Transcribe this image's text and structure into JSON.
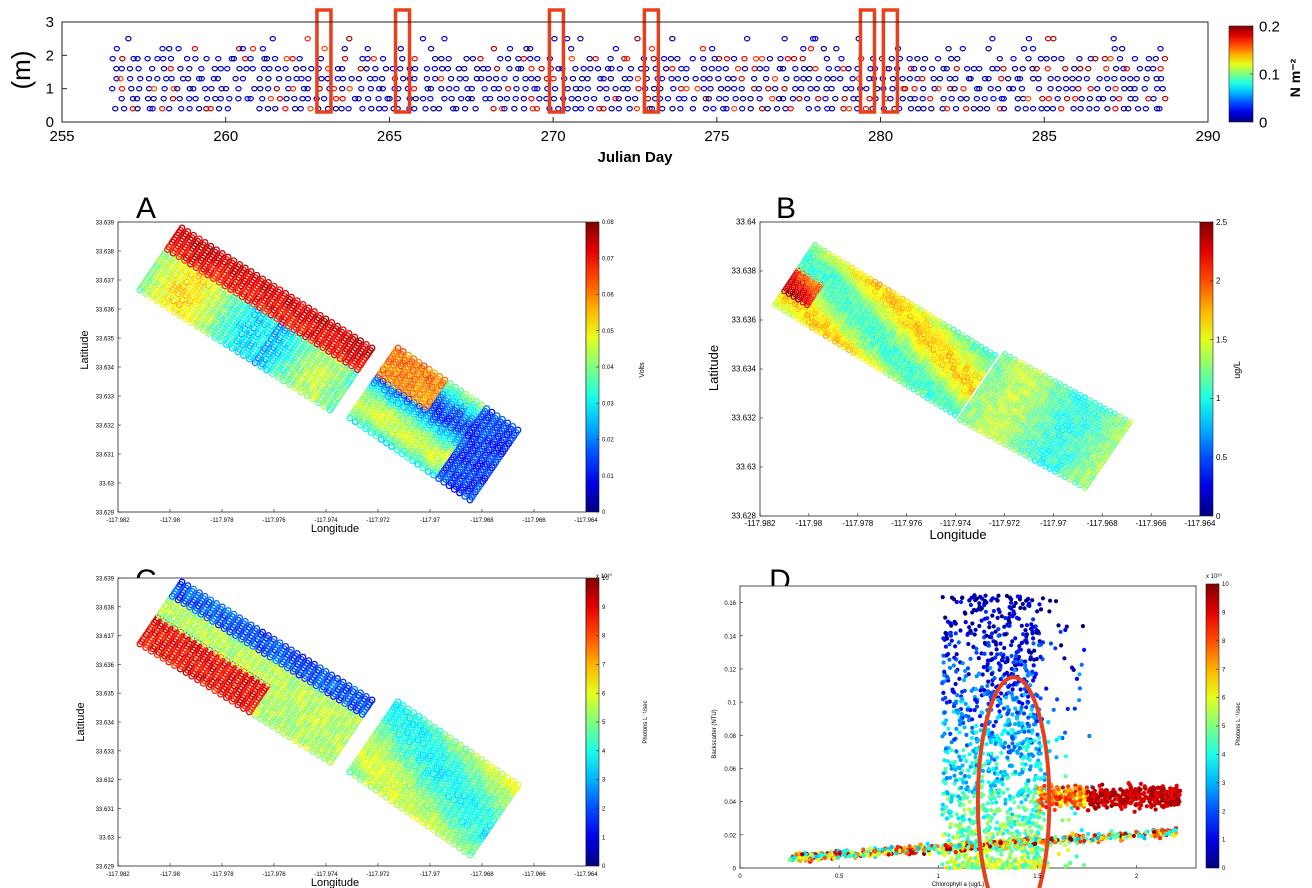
{
  "top_panel": {
    "ylabel": "(m)",
    "xlabel": "Julian Day",
    "xticks": [
      "255",
      "260",
      "265",
      "270",
      "275",
      "280",
      "285",
      "290"
    ],
    "yticks": [
      "0",
      "1",
      "2",
      "3"
    ],
    "colorbar": {
      "ticks": [
        "0",
        "0.1",
        "0.2"
      ],
      "label": "N m⁻²"
    },
    "highlight_days": [
      263,
      265.4,
      270.1,
      273,
      279.6,
      280.3
    ]
  },
  "panels": [
    {
      "letter": "A",
      "xlabel": "Longitude",
      "ylabel": "Latitude",
      "yticks": [
        "33.639",
        "33.638",
        "33.637",
        "33.636",
        "33.635",
        "33.634",
        "33.633",
        "33.632",
        "33.631",
        "33.63",
        "33.629"
      ],
      "xticks": [
        "-117.982",
        "-117.98",
        "-117.978",
        "-117.976",
        "-117.974",
        "-117.972",
        "-117.97",
        "-117.968",
        "-117.966",
        "-117.964"
      ],
      "colorbar": {
        "ticks": [
          "0",
          "0.01",
          "0.02",
          "0.03",
          "0.04",
          "0.05",
          "0.06",
          "0.07",
          "0.08"
        ],
        "label": "Volts"
      }
    },
    {
      "letter": "B",
      "xlabel": "Longitude",
      "ylabel": "Latitude",
      "yticks": [
        "33.64",
        "33.638",
        "33.636",
        "33.634",
        "33.632",
        "33.63",
        "33.628"
      ],
      "xticks": [
        "-117.982",
        "-117.98",
        "-117.978",
        "-117.976",
        "-117.974",
        "-117.972",
        "-117.97",
        "-117.968",
        "-117.966",
        "-117.964"
      ],
      "colorbar": {
        "ticks": [
          "0",
          "0.5",
          "1",
          "1.5",
          "2",
          "2.5"
        ],
        "label": "ug/L"
      }
    },
    {
      "letter": "C",
      "xlabel": "Longitude",
      "ylabel": "Latitude",
      "yticks": [
        "33.639",
        "33.638",
        "33.637",
        "33.636",
        "33.635",
        "33.634",
        "33.633",
        "33.632",
        "33.631",
        "33.63",
        "33.629"
      ],
      "xticks": [
        "-117.982",
        "-117.98",
        "-117.978",
        "-117.976",
        "-117.974",
        "-117.972",
        "-117.97",
        "-117.968",
        "-117.966",
        "-117.964"
      ],
      "colorbar": {
        "ticks": [
          "0",
          "1",
          "2",
          "3",
          "4",
          "5",
          "6",
          "7",
          "8",
          "9",
          "10"
        ],
        "label": "Photons L⁻¹/sec",
        "exponent": "x 10¹⁰"
      }
    },
    {
      "letter": "D",
      "xlabel": "Chlorophyll a (ug/L)",
      "ylabel": "Backscatter (NTU)",
      "yticks": [
        "0",
        "0.02",
        "0.04",
        "0.06",
        "0.08",
        "0.1",
        "0.12",
        "0.14",
        "0.16"
      ],
      "xticks": [
        "0",
        "0.5",
        "1",
        "1.5",
        "2"
      ],
      "colorbar": {
        "ticks": [
          "0",
          "1",
          "2",
          "3",
          "4",
          "5",
          "6",
          "7",
          "8",
          "9",
          "10"
        ],
        "label": "Photons L⁻¹/sec",
        "exponent": "x 10¹⁰"
      }
    }
  ],
  "chart_data": [
    {
      "type": "scatter",
      "xlabel": "Julian Day",
      "ylabel": "(m)",
      "xlim": [
        255,
        290
      ],
      "ylim": [
        0,
        3
      ],
      "depth_levels": [
        0.4,
        0.7,
        1.0,
        1.3,
        1.6,
        1.9,
        2.2,
        2.5
      ],
      "day_range": [
        256.5,
        288.5
      ],
      "colorbar_range": [
        0,
        0.2
      ],
      "colormap": "jet"
    },
    {
      "type": "scatter",
      "xlabel": "Longitude",
      "ylabel": "Latitude",
      "xlim": [
        -117.982,
        -117.964
      ],
      "ylim": [
        33.629,
        33.639
      ],
      "colorbar_range": [
        0,
        0.08
      ],
      "colormap": "jet"
    },
    {
      "type": "scatter",
      "xlabel": "Longitude",
      "ylabel": "Latitude",
      "xlim": [
        -117.982,
        -117.964
      ],
      "ylim": [
        33.628,
        33.64
      ],
      "colorbar_range": [
        0,
        2.5
      ],
      "colormap": "jet"
    },
    {
      "type": "scatter",
      "xlabel": "Longitude",
      "ylabel": "Latitude",
      "xlim": [
        -117.982,
        -117.964
      ],
      "ylim": [
        33.629,
        33.639
      ],
      "colorbar_range": [
        0,
        10
      ],
      "colormap": "jet"
    },
    {
      "type": "scatter",
      "xlabel": "Chlorophyll a (ug/L)",
      "ylabel": "Backscatter (NTU)",
      "xlim": [
        0,
        2.3
      ],
      "ylim": [
        0,
        0.17
      ],
      "colorbar_range": [
        0,
        10
      ],
      "colormap": "jet",
      "highlight_ellipse": {
        "center": [
          1.38,
          0.04
        ],
        "x_radius": 0.18,
        "y_radius": 0.03
      }
    }
  ]
}
